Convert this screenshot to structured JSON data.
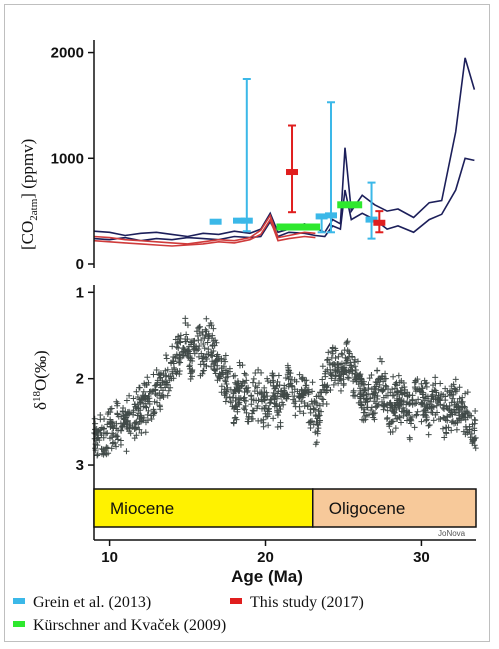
{
  "chart_data": [
    {
      "type": "line",
      "panel": "co2",
      "ylabel_main": "[CO",
      "ylabel_sub1": "2",
      "ylabel_sub2": "atm",
      "ylabel_tail": "] (ppmv)",
      "ylim": [
        0,
        2100
      ],
      "yticks": [
        "0",
        "1000",
        "2000"
      ],
      "ytick_values": [
        0,
        1000,
        2000
      ],
      "x_range": [
        9,
        33.5
      ],
      "series": [
        {
          "color": "#1c1f5a",
          "x": [
            9,
            10,
            11,
            12,
            13,
            14,
            15,
            16,
            17,
            18,
            19,
            19.7,
            20.3,
            20.8,
            21.5,
            22.5,
            23.2,
            23.8,
            24.3,
            24.8,
            25.1,
            25.5,
            26.2,
            27,
            27.8,
            28.5,
            29.5,
            30.5,
            31.3,
            32.2,
            32.8,
            33.4
          ],
          "values": [
            310,
            300,
            270,
            290,
            300,
            280,
            260,
            290,
            280,
            310,
            290,
            330,
            480,
            300,
            330,
            380,
            340,
            300,
            420,
            380,
            1100,
            500,
            650,
            560,
            500,
            520,
            440,
            580,
            600,
            1250,
            1950,
            1650
          ]
        },
        {
          "color": "#1c1f5a",
          "x": [
            9,
            10,
            11,
            12,
            13,
            14,
            15,
            16,
            17,
            18,
            19,
            19.7,
            20.3,
            20.8,
            21.5,
            22.5,
            23.2,
            23.8,
            24.3,
            24.8,
            25.1,
            25.5,
            26.2,
            27,
            27.8,
            28.5,
            29.5,
            30.5,
            31.3,
            32.2,
            32.8,
            33.4
          ],
          "values": [
            240,
            230,
            250,
            220,
            240,
            230,
            250,
            240,
            230,
            260,
            250,
            260,
            400,
            260,
            300,
            290,
            270,
            260,
            360,
            330,
            700,
            420,
            480,
            420,
            330,
            360,
            300,
            420,
            470,
            700,
            1000,
            980
          ]
        },
        {
          "color": "#cf3b3b",
          "x": [
            9,
            10,
            11,
            12,
            13,
            14,
            15,
            16,
            17,
            18,
            19,
            19.7,
            20.3,
            20.8,
            21.5,
            22.5,
            23.2
          ],
          "values": [
            260,
            250,
            230,
            220,
            210,
            200,
            190,
            210,
            230,
            220,
            250,
            320,
            460,
            250,
            270,
            300,
            290
          ]
        },
        {
          "color": "#cf3b3b",
          "x": [
            9,
            10,
            11,
            12,
            13,
            14,
            15,
            16,
            17,
            18,
            19,
            19.7,
            20.3,
            20.8,
            21.5,
            22.5,
            23.2
          ],
          "values": [
            220,
            210,
            200,
            190,
            180,
            170,
            180,
            190,
            210,
            200,
            230,
            280,
            420,
            220,
            240,
            260,
            250
          ]
        }
      ],
      "proxies": [
        {
          "color": "#3bb8e8",
          "x": 16.8,
          "value": 400,
          "low": 400,
          "high": 400
        },
        {
          "color": "#3bb8e8",
          "x": 18.3,
          "value": 410,
          "low": 410,
          "high": 410
        },
        {
          "color": "#3bb8e8",
          "x": 18.8,
          "value": 410,
          "low": 310,
          "high": 1750
        },
        {
          "color": "#3bb8e8",
          "x": 23.6,
          "value": 450,
          "low": 300,
          "high": 450
        },
        {
          "color": "#3bb8e8",
          "x": 24.2,
          "value": 460,
          "low": 300,
          "high": 1530
        },
        {
          "color": "#3bb8e8",
          "x": 26.8,
          "value": 420,
          "low": 240,
          "high": 770
        },
        {
          "color": "#e01e1e",
          "x": 21.7,
          "value": 870,
          "low": 490,
          "high": 1310
        },
        {
          "color": "#e01e1e",
          "x": 27.3,
          "value": 390,
          "low": 300,
          "high": 500
        }
      ],
      "bars": [
        {
          "color": "#2ee82e",
          "x0": 20.7,
          "x1": 23.5,
          "value": 350
        },
        {
          "color": "#2ee82e",
          "x0": 24.6,
          "x1": 26.2,
          "value": 560
        }
      ]
    },
    {
      "type": "scatter",
      "panel": "d18o",
      "ylabel": "δ18O(‰)",
      "ylim_inverted": [
        0.95,
        3.15
      ],
      "yticks": [
        "1",
        "2",
        "3"
      ],
      "ytick_values": [
        1,
        2,
        3
      ],
      "xlabel": "Age (Ma)",
      "xticks": [
        "10",
        "20",
        "30"
      ],
      "xtick_values": [
        10,
        20,
        30
      ],
      "x_range": [
        9,
        33.5
      ],
      "point_color": "#414a48",
      "trend": {
        "x": [
          9,
          10,
          11,
          11.5,
          12,
          13,
          13.8,
          14.2,
          14.6,
          15,
          15.3,
          15.6,
          16,
          16.4,
          16.8,
          17.2,
          17.6,
          18,
          18.5,
          19,
          19.5,
          20,
          20.5,
          21,
          21.5,
          22,
          22.5,
          23,
          23.3,
          23.8,
          24.3,
          24.8,
          25.2,
          25.8,
          26.3,
          26.8,
          27.4,
          28,
          28.6,
          29.2,
          29.8,
          30.4,
          31,
          31.6,
          32.2,
          32.8,
          33.4
        ],
        "values": [
          2.72,
          2.6,
          2.55,
          2.45,
          2.35,
          2.15,
          1.95,
          1.8,
          1.62,
          1.55,
          1.75,
          1.6,
          1.72,
          1.55,
          1.8,
          1.95,
          2.05,
          2.25,
          2.1,
          2.35,
          2.2,
          2.35,
          2.15,
          2.3,
          2.0,
          2.2,
          2.1,
          2.35,
          2.5,
          2.05,
          1.85,
          1.95,
          1.75,
          2.0,
          2.2,
          2.25,
          2.05,
          2.35,
          2.25,
          2.4,
          2.2,
          2.35,
          2.25,
          2.4,
          2.3,
          2.35,
          2.6
        ]
      },
      "scatter_spread": 0.25
    }
  ],
  "epochs": [
    {
      "name": "Miocene",
      "x0": 9,
      "x1": 23.03,
      "color": "#fff200"
    },
    {
      "name": "Oligocene",
      "x0": 23.03,
      "x1": 33.5,
      "color": "#f7c99a"
    }
  ],
  "legend": [
    {
      "label": "Grein et al. (2013)",
      "color": "#3bb8e8"
    },
    {
      "label": "This study (2017)",
      "color": "#e01e1e"
    },
    {
      "label": "Kürschner and Kvaček (2009)",
      "color": "#2ee82e"
    }
  ],
  "watermark": "JoNova"
}
